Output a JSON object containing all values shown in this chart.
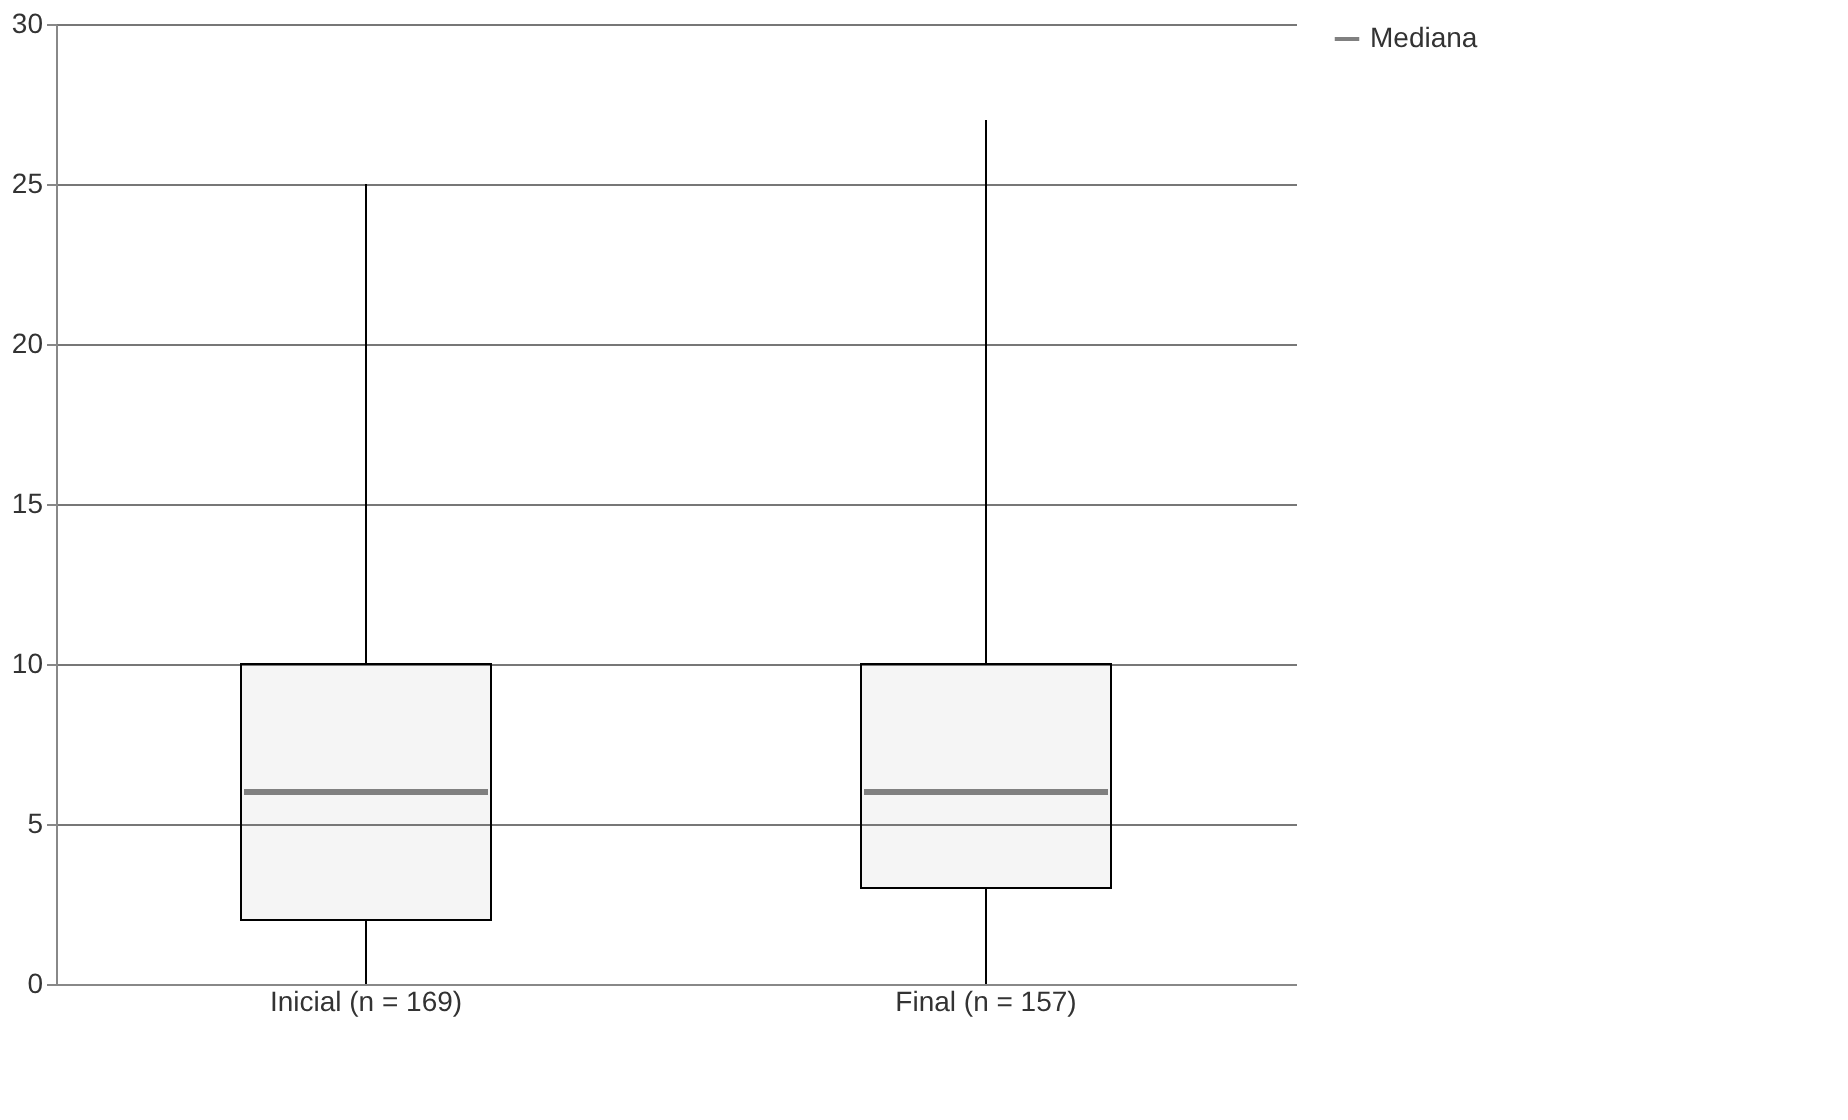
{
  "chart_data": {
    "type": "box",
    "categories": [
      "Inicial (n = 169)",
      "Final (n = 157)"
    ],
    "series": [
      {
        "name": "Mediana",
        "color": "#808080",
        "boxes": [
          {
            "low": 0,
            "q1": 2,
            "median": 6,
            "q3": 10,
            "high": 25
          },
          {
            "low": 0,
            "q1": 3,
            "median": 6,
            "q3": 10,
            "high": 27
          }
        ]
      }
    ],
    "ylim": [
      0,
      30
    ],
    "yticks": [
      0,
      5,
      10,
      15,
      20,
      25,
      30
    ],
    "grid": "y",
    "legend": "right"
  }
}
